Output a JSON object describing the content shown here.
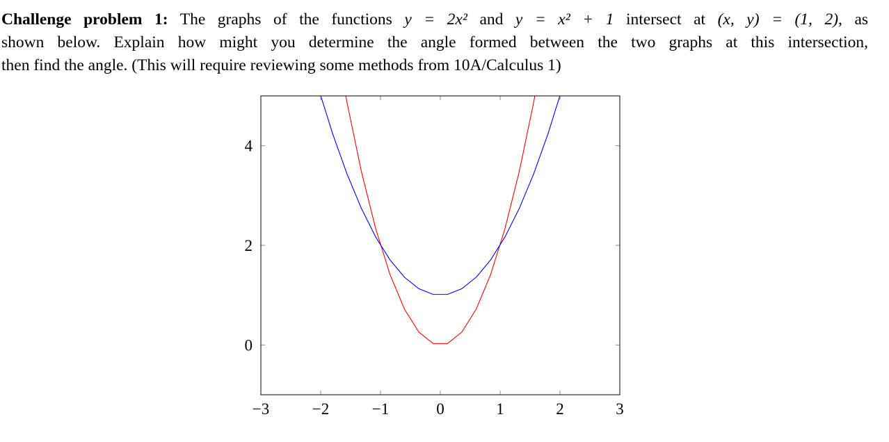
{
  "problem": {
    "lines": [
      [
        {
          "text": "Challenge problem 1:",
          "style": "bold"
        },
        {
          "text": " The graphs of the functions ",
          "style": "normal"
        },
        {
          "text": "y = 2x² ",
          "style": "math"
        },
        {
          "text": "and ",
          "style": "normal"
        },
        {
          "text": "y = x² + 1",
          "style": "math"
        },
        {
          "text": " intersect at ",
          "style": "normal"
        },
        {
          "text": "(x, y) = (1, 2)",
          "style": "math"
        },
        {
          "text": ", as",
          "style": "normal"
        }
      ],
      [
        {
          "text": "shown below. Explain how might you determine the angle formed between the two graphs at this intersection,",
          "style": "normal"
        }
      ],
      [
        {
          "text": "then find the angle. (This will require reviewing some methods from 10A/Calculus 1)",
          "style": "normal"
        }
      ]
    ]
  },
  "chart_data": {
    "type": "line",
    "title": "",
    "xlabel": "",
    "ylabel": "",
    "xlim": [
      -3,
      3
    ],
    "ylim": [
      -1,
      5
    ],
    "xticks": [
      -3,
      -2,
      -1,
      0,
      1,
      2,
      3
    ],
    "xtick_labels": [
      "−3",
      "−2",
      "−1",
      "0",
      "1",
      "2",
      "3"
    ],
    "yticks": [
      0,
      2,
      4
    ],
    "ytick_labels": [
      "0",
      "2",
      "4"
    ],
    "grid": false,
    "series": [
      {
        "function": "2x^2",
        "color": "#ff0000",
        "domain": [
          -3,
          3
        ]
      },
      {
        "function": "x^2 + 1",
        "color": "#0000ff",
        "domain": [
          -3,
          3
        ]
      }
    ]
  }
}
